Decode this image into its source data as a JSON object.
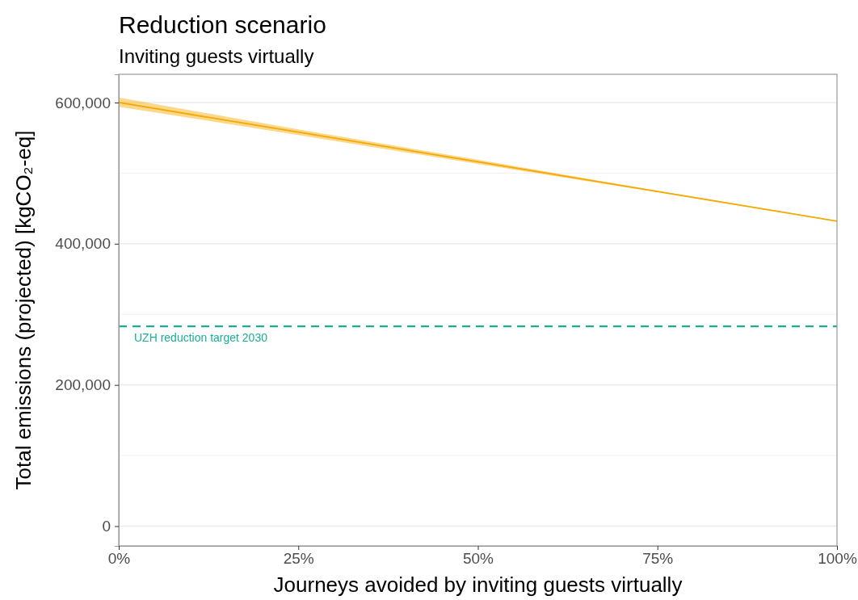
{
  "chart_data": {
    "type": "line",
    "title": "Reduction scenario",
    "subtitle": "Inviting guests virtually",
    "xlabel": "Journeys avoided by inviting guests virtually",
    "ylabel": "Total emissions (projected) [kgCO₂-eq]",
    "x": [
      0,
      25,
      50,
      75,
      100
    ],
    "series": [
      {
        "color": "#f5a800",
        "values": [
          600000,
          558000,
          516000,
          474000,
          432000
        ],
        "lower": [
          594000,
          554000,
          513000,
          473000,
          431500
        ],
        "upper": [
          607000,
          562000,
          519000,
          475000,
          432500
        ]
      }
    ],
    "xlim": [
      0,
      100
    ],
    "xticks": [
      {
        "value": 0,
        "label": "0%"
      },
      {
        "value": 25,
        "label": "25%"
      },
      {
        "value": 50,
        "label": "50%"
      },
      {
        "value": 75,
        "label": "75%"
      },
      {
        "value": 100,
        "label": "100%"
      }
    ],
    "ylim": [
      -28000,
      640000
    ],
    "yticks": [
      {
        "value": 0,
        "label": "0"
      },
      {
        "value": 200000,
        "label": "200,000"
      },
      {
        "value": 400000,
        "label": "400,000"
      },
      {
        "value": 600000,
        "label": "600,000"
      }
    ],
    "ref_lines": [
      {
        "axis": "y",
        "value": 283000,
        "label": "UZH reduction target 2030",
        "color": "#1aae96",
        "line_style": "dashed"
      }
    ],
    "grid": "y",
    "marker": "none",
    "line_style": "solid"
  }
}
